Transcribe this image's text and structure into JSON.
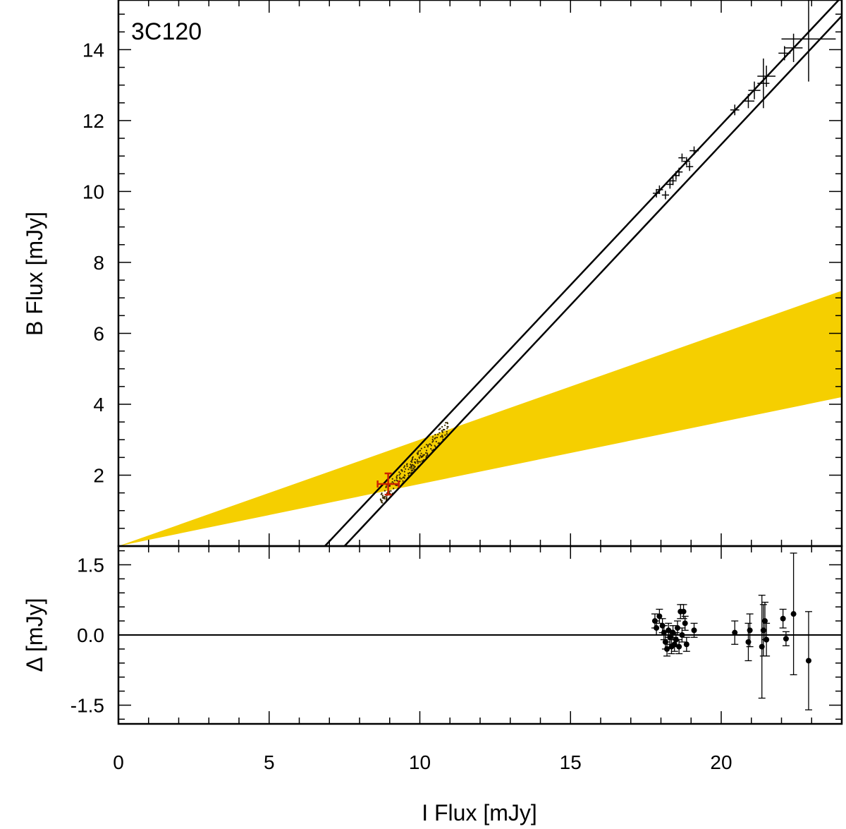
{
  "chart_data": {
    "type": "scatter",
    "title": "3C120",
    "xlabel": "I Flux [mJy]",
    "xlim": [
      0,
      24
    ],
    "x_major_ticks": [
      0,
      5,
      10,
      15,
      20
    ],
    "x_tick_labels": [
      "0",
      "5",
      "10",
      "15",
      "20"
    ],
    "top_panel": {
      "ylabel": "B Flux [mJy]",
      "ylim": [
        0,
        15.4
      ],
      "y_major_ticks": [
        2,
        4,
        6,
        8,
        10,
        12,
        14
      ],
      "y_tick_labels": [
        "2",
        "4",
        "6",
        "8",
        "10",
        "12",
        "14"
      ],
      "host_galaxy_band": {
        "color": "#f5cf00",
        "apex": [
          0,
          0
        ],
        "upper_slope": 0.3,
        "lower_slope": 0.175
      },
      "fit_lines": [
        {
          "x": [
            6.85,
            23.9
          ],
          "y": [
            0,
            15.4
          ]
        },
        {
          "x": [
            7.5,
            24.0
          ],
          "y": [
            0,
            14.95
          ]
        }
      ],
      "host_estimate": {
        "x": 8.95,
        "y": 1.75,
        "xerr": 0.35,
        "yerr": 0.3,
        "color": "#cc2200"
      },
      "simulated_points_color": "#3a2a00",
      "observations": [
        {
          "x": 17.85,
          "y": 9.95,
          "xerr": 0.12,
          "yerr": 0.12
        },
        {
          "x": 17.95,
          "y": 10.05,
          "xerr": 0.12,
          "yerr": 0.12
        },
        {
          "x": 18.15,
          "y": 9.9,
          "xerr": 0.12,
          "yerr": 0.12
        },
        {
          "x": 18.3,
          "y": 10.2,
          "xerr": 0.12,
          "yerr": 0.12
        },
        {
          "x": 18.4,
          "y": 10.3,
          "xerr": 0.12,
          "yerr": 0.12
        },
        {
          "x": 18.5,
          "y": 10.45,
          "xerr": 0.12,
          "yerr": 0.12
        },
        {
          "x": 18.6,
          "y": 10.55,
          "xerr": 0.12,
          "yerr": 0.12
        },
        {
          "x": 18.7,
          "y": 10.95,
          "xerr": 0.12,
          "yerr": 0.12
        },
        {
          "x": 18.85,
          "y": 10.85,
          "xerr": 0.12,
          "yerr": 0.12
        },
        {
          "x": 18.95,
          "y": 10.7,
          "xerr": 0.12,
          "yerr": 0.12
        },
        {
          "x": 19.1,
          "y": 11.15,
          "xerr": 0.15,
          "yerr": 0.12
        },
        {
          "x": 20.45,
          "y": 12.3,
          "xerr": 0.15,
          "yerr": 0.15
        },
        {
          "x": 20.9,
          "y": 12.55,
          "xerr": 0.2,
          "yerr": 0.2
        },
        {
          "x": 21.1,
          "y": 12.85,
          "xerr": 0.2,
          "yerr": 0.25
        },
        {
          "x": 21.4,
          "y": 13.05,
          "xerr": 0.2,
          "yerr": 0.7
        },
        {
          "x": 21.5,
          "y": 13.25,
          "xerr": 0.3,
          "yerr": 0.3
        },
        {
          "x": 22.1,
          "y": 13.9,
          "xerr": 0.2,
          "yerr": 0.2
        },
        {
          "x": 22.4,
          "y": 14.05,
          "xerr": 0.3,
          "yerr": 0.4
        },
        {
          "x": 22.9,
          "y": 14.3,
          "xerr": 0.9,
          "yerr": 1.2
        }
      ]
    },
    "residual_panel": {
      "ylabel": "Δ [mJy]",
      "ylim": [
        -1.9,
        1.9
      ],
      "y_major_ticks": [
        1.5,
        0.0,
        -1.5
      ],
      "y_tick_labels": [
        "1.5",
        "0.0",
        "-1.5"
      ],
      "zero_line": 0,
      "points": [
        {
          "x": 17.8,
          "y": 0.3,
          "yerr": 0.15
        },
        {
          "x": 17.85,
          "y": 0.15,
          "yerr": 0.15
        },
        {
          "x": 17.95,
          "y": 0.4,
          "yerr": 0.15
        },
        {
          "x": 18.05,
          "y": 0.2,
          "yerr": 0.15
        },
        {
          "x": 18.1,
          "y": 0.05,
          "yerr": 0.15
        },
        {
          "x": 18.15,
          "y": -0.15,
          "yerr": 0.15
        },
        {
          "x": 18.2,
          "y": -0.3,
          "yerr": 0.15
        },
        {
          "x": 18.25,
          "y": 0.1,
          "yerr": 0.15
        },
        {
          "x": 18.3,
          "y": -0.05,
          "yerr": 0.15
        },
        {
          "x": 18.35,
          "y": -0.25,
          "yerr": 0.15
        },
        {
          "x": 18.4,
          "y": 0.05,
          "yerr": 0.15
        },
        {
          "x": 18.45,
          "y": -0.2,
          "yerr": 0.15
        },
        {
          "x": 18.5,
          "y": -0.1,
          "yerr": 0.15
        },
        {
          "x": 18.55,
          "y": 0.15,
          "yerr": 0.15
        },
        {
          "x": 18.6,
          "y": -0.25,
          "yerr": 0.15
        },
        {
          "x": 18.65,
          "y": 0.5,
          "yerr": 0.15
        },
        {
          "x": 18.7,
          "y": 0.0,
          "yerr": 0.15
        },
        {
          "x": 18.75,
          "y": 0.5,
          "yerr": 0.15
        },
        {
          "x": 18.8,
          "y": 0.25,
          "yerr": 0.15
        },
        {
          "x": 18.85,
          "y": -0.2,
          "yerr": 0.15
        },
        {
          "x": 19.1,
          "y": 0.1,
          "yerr": 0.15
        },
        {
          "x": 20.45,
          "y": 0.05,
          "yerr": 0.25
        },
        {
          "x": 20.9,
          "y": -0.15,
          "yerr": 0.4
        },
        {
          "x": 20.95,
          "y": 0.1,
          "yerr": 0.35
        },
        {
          "x": 21.35,
          "y": -0.25,
          "yerr": 1.1
        },
        {
          "x": 21.4,
          "y": 0.1,
          "yerr": 0.55
        },
        {
          "x": 21.45,
          "y": 0.3,
          "yerr": 0.4
        },
        {
          "x": 21.5,
          "y": -0.1,
          "yerr": 0.35
        },
        {
          "x": 22.05,
          "y": 0.35,
          "yerr": 0.2
        },
        {
          "x": 22.15,
          "y": -0.08,
          "yerr": 0.15
        },
        {
          "x": 22.4,
          "y": 0.45,
          "yerr": 1.3
        },
        {
          "x": 22.9,
          "y": -0.55,
          "yerr": 1.05
        }
      ]
    }
  }
}
